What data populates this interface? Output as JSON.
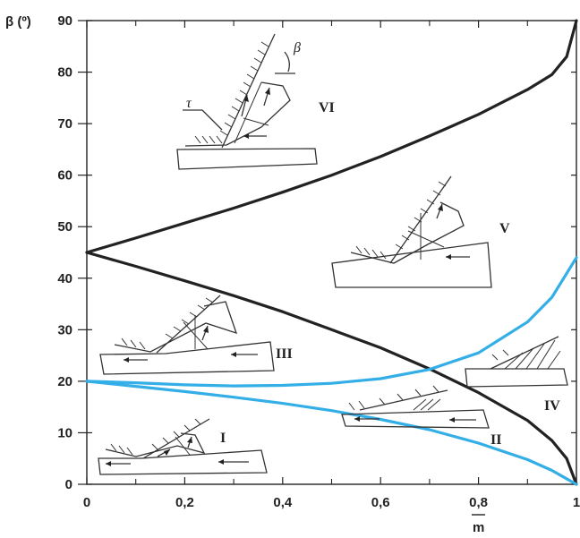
{
  "chart_data": {
    "type": "line",
    "xlabel": "m",
    "ylabel": "β (º)",
    "xlim": [
      0,
      1
    ],
    "ylim": [
      0,
      90
    ],
    "x_ticks": [
      "0",
      "0,2",
      "0,4",
      "0,6",
      "0,8",
      "1"
    ],
    "y_ticks": [
      "0",
      "10",
      "20",
      "30",
      "40",
      "50",
      "60",
      "70",
      "80",
      "90"
    ],
    "grid": false,
    "series": [
      {
        "color": "#222222",
        "x": [
          0,
          0.1,
          0.2,
          0.3,
          0.4,
          0.5,
          0.6,
          0.7,
          0.8,
          0.9,
          0.95,
          0.98,
          1.0
        ],
        "y": [
          45,
          47.8,
          50.7,
          53.6,
          56.7,
          60.0,
          63.6,
          67.6,
          71.8,
          76.6,
          79.5,
          83,
          90
        ]
      },
      {
        "color": "#222222",
        "x": [
          0,
          0.1,
          0.2,
          0.3,
          0.4,
          0.5,
          0.6,
          0.7,
          0.8,
          0.9,
          0.95,
          0.98,
          1.0
        ],
        "y": [
          45,
          42.3,
          39.5,
          36.6,
          33.5,
          30.0,
          26.5,
          22.4,
          17.8,
          12.4,
          8.5,
          5,
          0
        ]
      },
      {
        "color": "#33aee6",
        "x": [
          0,
          0.1,
          0.2,
          0.3,
          0.4,
          0.5,
          0.6,
          0.7,
          0.8,
          0.9,
          0.95,
          1.0
        ],
        "y": [
          20,
          19.7,
          19.3,
          19.1,
          19.2,
          19.6,
          20.5,
          22.3,
          25.5,
          31.5,
          36.3,
          44
        ]
      },
      {
        "color": "#33aee6",
        "x": [
          0,
          0.1,
          0.2,
          0.3,
          0.4,
          0.5,
          0.6,
          0.7,
          0.8,
          0.9,
          0.95,
          1.0
        ],
        "y": [
          20,
          19.0,
          18.0,
          16.9,
          15.7,
          14.3,
          12.6,
          10.6,
          8.0,
          4.8,
          2.7,
          0
        ]
      }
    ],
    "annotations": [
      "VI",
      "V",
      "III",
      "IV",
      "II",
      "I",
      "β",
      "τ"
    ]
  }
}
